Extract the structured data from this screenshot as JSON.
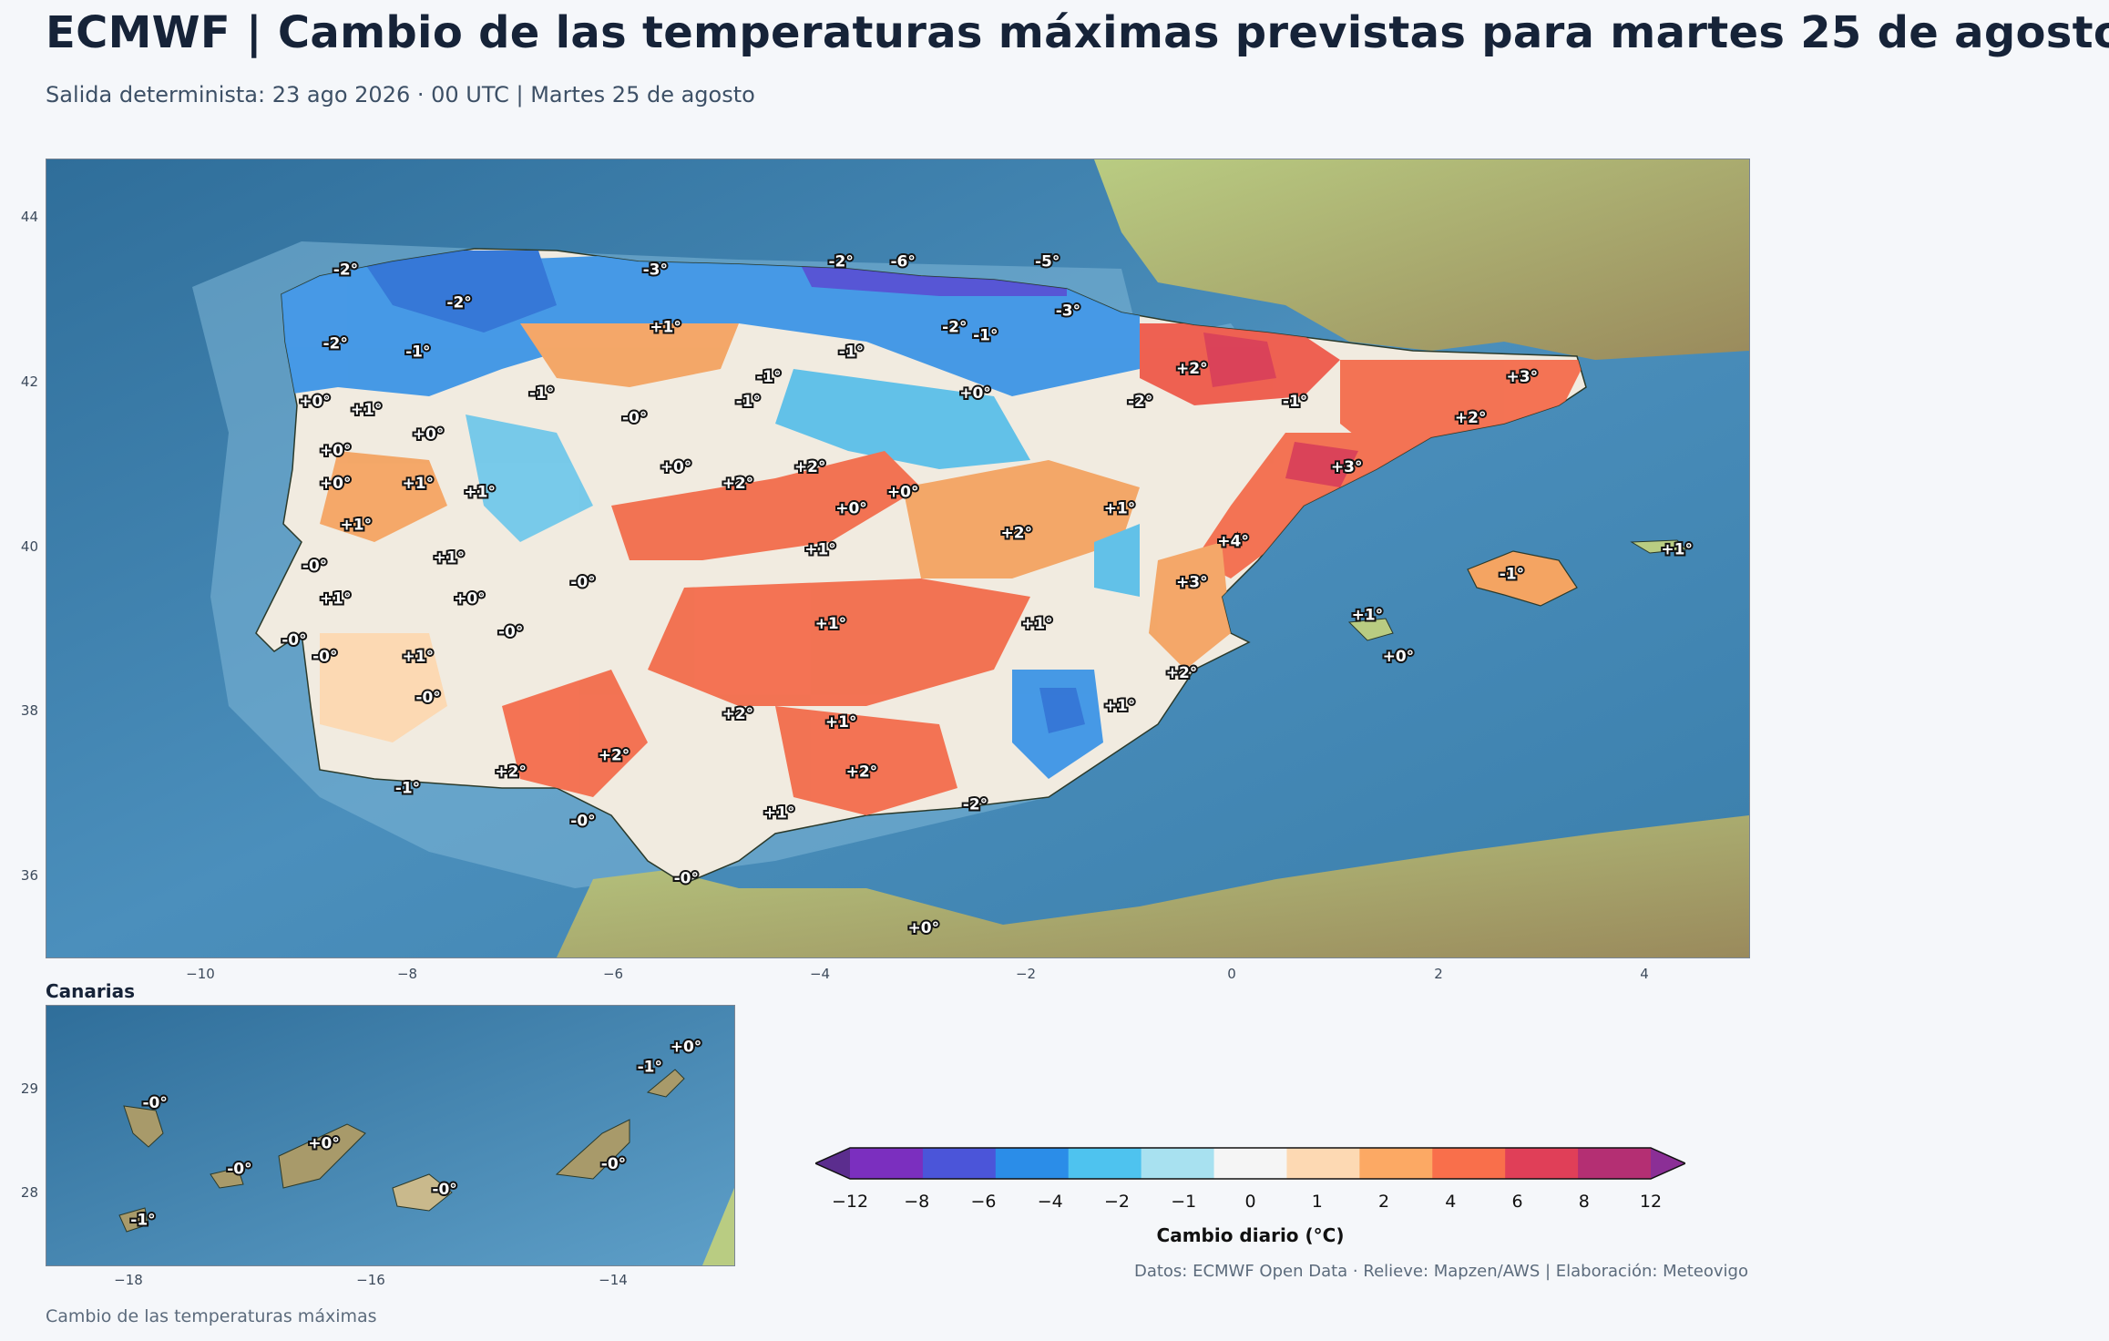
{
  "header": {
    "title": "ECMWF | Cambio de las temperaturas máximas previstas para martes 25 de agosto",
    "subtitle": "Salida determinista: 23 ago 2026 · 00 UTC  |  Martes 25 de agosto"
  },
  "main_map": {
    "lat_ticks": [
      "44",
      "42",
      "40",
      "38",
      "36"
    ],
    "lon_ticks": [
      "−10",
      "−8",
      "−6",
      "−4",
      "−2",
      "0",
      "2",
      "4"
    ],
    "labels": [
      {
        "text": "-2°",
        "lon": -8.6,
        "lat": 43.3
      },
      {
        "text": "-3°",
        "lon": -5.6,
        "lat": 43.3
      },
      {
        "text": "-2°",
        "lon": -3.8,
        "lat": 43.4
      },
      {
        "text": "-6°",
        "lon": -3.2,
        "lat": 43.4
      },
      {
        "text": "-5°",
        "lon": -1.8,
        "lat": 43.4
      },
      {
        "text": "-2°",
        "lon": -7.5,
        "lat": 42.9
      },
      {
        "text": "-3°",
        "lon": -1.6,
        "lat": 42.8
      },
      {
        "text": "+1°",
        "lon": -5.5,
        "lat": 42.6
      },
      {
        "text": "-2°",
        "lon": -2.7,
        "lat": 42.6
      },
      {
        "text": "-1°",
        "lon": -2.4,
        "lat": 42.5
      },
      {
        "text": "-2°",
        "lon": -8.7,
        "lat": 42.4
      },
      {
        "text": "-1°",
        "lon": -7.9,
        "lat": 42.3
      },
      {
        "text": "-1°",
        "lon": -3.7,
        "lat": 42.3
      },
      {
        "text": "+2°",
        "lon": -0.4,
        "lat": 42.1
      },
      {
        "text": "-1°",
        "lon": -4.5,
        "lat": 42.0
      },
      {
        "text": "+3°",
        "lon": 2.8,
        "lat": 42.0
      },
      {
        "text": "-1°",
        "lon": -6.7,
        "lat": 41.8
      },
      {
        "text": "+0°",
        "lon": -2.5,
        "lat": 41.8
      },
      {
        "text": "+0°",
        "lon": -8.9,
        "lat": 41.7
      },
      {
        "text": "-1°",
        "lon": -4.7,
        "lat": 41.7
      },
      {
        "text": "-2°",
        "lon": -0.9,
        "lat": 41.7
      },
      {
        "text": "-1°",
        "lon": 0.6,
        "lat": 41.7
      },
      {
        "text": "+1°",
        "lon": -8.4,
        "lat": 41.6
      },
      {
        "text": "-0°",
        "lon": -5.8,
        "lat": 41.5
      },
      {
        "text": "+2°",
        "lon": 2.3,
        "lat": 41.5
      },
      {
        "text": "+0°",
        "lon": -7.8,
        "lat": 41.3
      },
      {
        "text": "+0°",
        "lon": -8.7,
        "lat": 41.1
      },
      {
        "text": "+0°",
        "lon": -5.4,
        "lat": 40.9
      },
      {
        "text": "+2°",
        "lon": -4.1,
        "lat": 40.9
      },
      {
        "text": "+3°",
        "lon": 1.1,
        "lat": 40.9
      },
      {
        "text": "+0°",
        "lon": -8.7,
        "lat": 40.7
      },
      {
        "text": "+1°",
        "lon": -7.9,
        "lat": 40.7
      },
      {
        "text": "+2°",
        "lon": -4.8,
        "lat": 40.7
      },
      {
        "text": "+0°",
        "lon": -3.2,
        "lat": 40.6
      },
      {
        "text": "+1°",
        "lon": -7.3,
        "lat": 40.6
      },
      {
        "text": "+0°",
        "lon": -3.7,
        "lat": 40.4
      },
      {
        "text": "+1°",
        "lon": -1.1,
        "lat": 40.4
      },
      {
        "text": "+1°",
        "lon": -8.5,
        "lat": 40.2
      },
      {
        "text": "+2°",
        "lon": -2.1,
        "lat": 40.1
      },
      {
        "text": "+4°",
        "lon": 0.0,
        "lat": 40.0
      },
      {
        "text": "+1°",
        "lon": 4.3,
        "lat": 39.9
      },
      {
        "text": "+1°",
        "lon": -7.6,
        "lat": 39.8
      },
      {
        "text": "+1°",
        "lon": -4.0,
        "lat": 39.9
      },
      {
        "text": "-0°",
        "lon": -8.9,
        "lat": 39.7
      },
      {
        "text": "-1°",
        "lon": 2.7,
        "lat": 39.6
      },
      {
        "text": "-0°",
        "lon": -6.3,
        "lat": 39.5
      },
      {
        "text": "+3°",
        "lon": -0.4,
        "lat": 39.5
      },
      {
        "text": "+0°",
        "lon": -7.4,
        "lat": 39.3
      },
      {
        "text": "+1°",
        "lon": -8.7,
        "lat": 39.3
      },
      {
        "text": "+1°",
        "lon": 1.3,
        "lat": 39.1
      },
      {
        "text": "+1°",
        "lon": -3.9,
        "lat": 39.0
      },
      {
        "text": "+1°",
        "lon": -1.9,
        "lat": 39.0
      },
      {
        "text": "-0°",
        "lon": -7.0,
        "lat": 38.9
      },
      {
        "text": "-0°",
        "lon": -9.1,
        "lat": 38.8
      },
      {
        "text": "-0°",
        "lon": -8.8,
        "lat": 38.6
      },
      {
        "text": "+1°",
        "lon": -7.9,
        "lat": 38.6
      },
      {
        "text": "+0°",
        "lon": 1.6,
        "lat": 38.6
      },
      {
        "text": "+2°",
        "lon": -0.5,
        "lat": 38.4
      },
      {
        "text": "-0°",
        "lon": -7.8,
        "lat": 38.1
      },
      {
        "text": "+1°",
        "lon": -1.1,
        "lat": 38.0
      },
      {
        "text": "+2°",
        "lon": -4.8,
        "lat": 37.9
      },
      {
        "text": "+1°",
        "lon": -3.8,
        "lat": 37.8
      },
      {
        "text": "+2°",
        "lon": -6.0,
        "lat": 37.4
      },
      {
        "text": "+2°",
        "lon": -7.0,
        "lat": 37.2
      },
      {
        "text": "+2°",
        "lon": -3.6,
        "lat": 37.2
      },
      {
        "text": "-1°",
        "lon": -8.0,
        "lat": 37.0
      },
      {
        "text": "-2°",
        "lon": -2.5,
        "lat": 36.8
      },
      {
        "text": "+1°",
        "lon": -4.4,
        "lat": 36.7
      },
      {
        "text": "-0°",
        "lon": -6.3,
        "lat": 36.6
      },
      {
        "text": "-0°",
        "lon": -5.3,
        "lat": 35.9
      },
      {
        "text": "+0°",
        "lon": -3.0,
        "lat": 35.3
      }
    ]
  },
  "canarias": {
    "title": "Canarias",
    "lat_ticks": [
      "29",
      "28"
    ],
    "lon_ticks": [
      "−18",
      "−16",
      "−14"
    ],
    "labels": [
      {
        "text": "+0°",
        "lon": -13.5,
        "lat": 29.4
      },
      {
        "text": "-1°",
        "lon": -13.8,
        "lat": 29.2
      },
      {
        "text": "-0°",
        "lon": -17.9,
        "lat": 28.85
      },
      {
        "text": "+0°",
        "lon": -16.5,
        "lat": 28.45
      },
      {
        "text": "-0°",
        "lon": -17.2,
        "lat": 28.2
      },
      {
        "text": "-0°",
        "lon": -14.1,
        "lat": 28.25
      },
      {
        "text": "-0°",
        "lon": -15.5,
        "lat": 28.0
      },
      {
        "text": "-1°",
        "lon": -18.0,
        "lat": 27.7
      }
    ]
  },
  "colorbar": {
    "label": "Cambio diario (°C)",
    "ticks": [
      "−12",
      "−8",
      "−6",
      "−4",
      "−2",
      "−1",
      "0",
      "1",
      "2",
      "4",
      "6",
      "8",
      "12"
    ],
    "colors": [
      "#5b2d8e",
      "#7b2fbf",
      "#4b55d9",
      "#2b8de8",
      "#4ec3ef",
      "#a8e1f0",
      "#f5f5f5",
      "#fdd9b3",
      "#fca964",
      "#f96f4b",
      "#e03f58",
      "#b42f73",
      "#8b2f96"
    ]
  },
  "footer": {
    "source": "Datos: ECMWF Open Data · Relieve: Mapzen/AWS  |  Elaboración: Meteovigo",
    "caption": "Cambio de las temperaturas máximas"
  }
}
